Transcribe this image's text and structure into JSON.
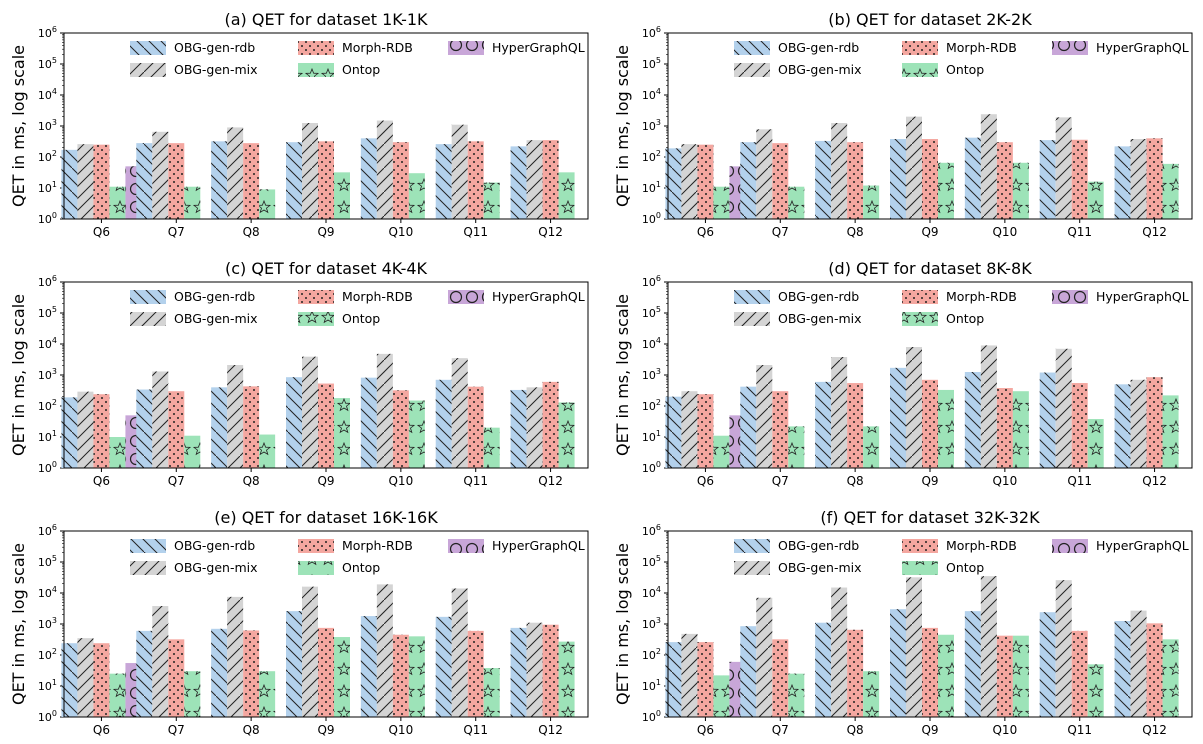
{
  "page": {
    "ylabel": "QET in ms, log scale"
  },
  "series_styles": [
    {
      "name": "OBG-gen-rdb",
      "color": "#b3d1ec",
      "pattern": "backslash"
    },
    {
      "name": "OBG-gen-mix",
      "color": "#d4d4d4",
      "pattern": "slash"
    },
    {
      "name": "Morph-RDB",
      "color": "#f4a7a0",
      "pattern": "dots"
    },
    {
      "name": "Ontop",
      "color": "#9de3b8",
      "pattern": "stars"
    },
    {
      "name": "HyperGraphQL",
      "color": "#c8a6d8",
      "pattern": "circles"
    }
  ],
  "chart_data": [
    {
      "type": "bar",
      "title": "(a) QET for dataset 1K-1K",
      "ylabel": "QET in ms, log scale",
      "yscale": "log",
      "ylim": [
        1,
        1000000
      ],
      "yticks": [
        "10^0",
        "10^1",
        "10^2",
        "10^3",
        "10^4",
        "10^5",
        "10^6"
      ],
      "categories": [
        "Q6",
        "Q7",
        "Q8",
        "Q9",
        "Q10",
        "Q11",
        "Q12"
      ],
      "legend": "top-right",
      "series": [
        {
          "name": "OBG-gen-rdb",
          "values": [
            170,
            280,
            320,
            300,
            400,
            260,
            220
          ]
        },
        {
          "name": "OBG-gen-mix",
          "values": [
            260,
            650,
            900,
            1250,
            1500,
            1100,
            350
          ]
        },
        {
          "name": "Morph-RDB",
          "values": [
            250,
            280,
            280,
            320,
            300,
            320,
            350
          ]
        },
        {
          "name": "Ontop",
          "values": [
            11,
            11,
            9,
            32,
            30,
            15,
            32
          ]
        },
        {
          "name": "HyperGraphQL",
          "values": [
            50,
            null,
            null,
            null,
            null,
            null,
            null
          ]
        }
      ]
    },
    {
      "type": "bar",
      "title": "(b) QET for dataset 2K-2K",
      "ylabel": "QET in ms, log scale",
      "yscale": "log",
      "ylim": [
        1,
        1000000
      ],
      "yticks": [
        "10^0",
        "10^1",
        "10^2",
        "10^3",
        "10^4",
        "10^5",
        "10^6"
      ],
      "categories": [
        "Q6",
        "Q7",
        "Q8",
        "Q9",
        "Q10",
        "Q11",
        "Q12"
      ],
      "legend": "top-right",
      "series": [
        {
          "name": "OBG-gen-rdb",
          "values": [
            190,
            300,
            330,
            380,
            420,
            350,
            220
          ]
        },
        {
          "name": "OBG-gen-mix",
          "values": [
            260,
            780,
            1250,
            2000,
            2400,
            1900,
            380
          ]
        },
        {
          "name": "Morph-RDB",
          "values": [
            250,
            280,
            300,
            380,
            300,
            360,
            400
          ]
        },
        {
          "name": "Ontop",
          "values": [
            11,
            11,
            12,
            65,
            65,
            16,
            60
          ]
        },
        {
          "name": "HyperGraphQL",
          "values": [
            50,
            null,
            null,
            null,
            null,
            null,
            null
          ]
        }
      ]
    },
    {
      "type": "bar",
      "title": "(c) QET for dataset 4K-4K",
      "ylabel": "QET in ms, log scale",
      "yscale": "log",
      "ylim": [
        1,
        1000000
      ],
      "yticks": [
        "10^0",
        "10^1",
        "10^2",
        "10^3",
        "10^4",
        "10^5",
        "10^6"
      ],
      "categories": [
        "Q6",
        "Q7",
        "Q8",
        "Q9",
        "Q10",
        "Q11",
        "Q12"
      ],
      "legend": "top-right",
      "series": [
        {
          "name": "OBG-gen-rdb",
          "values": [
            190,
            340,
            400,
            850,
            820,
            700,
            330
          ]
        },
        {
          "name": "OBG-gen-mix",
          "values": [
            290,
            1300,
            2100,
            3900,
            4800,
            3500,
            400
          ]
        },
        {
          "name": "Morph-RDB",
          "values": [
            240,
            300,
            430,
            530,
            320,
            420,
            600
          ]
        },
        {
          "name": "Ontop",
          "values": [
            10,
            11,
            12,
            180,
            150,
            20,
            130
          ]
        },
        {
          "name": "HyperGraphQL",
          "values": [
            50,
            null,
            null,
            null,
            null,
            null,
            null
          ]
        }
      ]
    },
    {
      "type": "bar",
      "title": "(d) QET for dataset 8K-8K",
      "ylabel": "QET in ms, log scale",
      "yscale": "log",
      "ylim": [
        1,
        1000000
      ],
      "yticks": [
        "10^0",
        "10^1",
        "10^2",
        "10^3",
        "10^4",
        "10^5",
        "10^6"
      ],
      "categories": [
        "Q6",
        "Q7",
        "Q8",
        "Q9",
        "Q10",
        "Q11",
        "Q12"
      ],
      "legend": "top-right",
      "series": [
        {
          "name": "OBG-gen-rdb",
          "values": [
            200,
            420,
            600,
            1700,
            1250,
            1200,
            500
          ]
        },
        {
          "name": "OBG-gen-mix",
          "values": [
            300,
            2100,
            3800,
            8000,
            9000,
            7000,
            700
          ]
        },
        {
          "name": "Morph-RDB",
          "values": [
            240,
            300,
            550,
            700,
            380,
            550,
            850
          ]
        },
        {
          "name": "Ontop",
          "values": [
            11,
            22,
            22,
            330,
            300,
            38,
            220
          ]
        },
        {
          "name": "HyperGraphQL",
          "values": [
            50,
            null,
            null,
            null,
            null,
            null,
            null
          ]
        }
      ]
    },
    {
      "type": "bar",
      "title": "(e) QET for dataset 16K-16K",
      "ylabel": "QET in ms, log scale",
      "yscale": "log",
      "ylim": [
        1,
        1000000
      ],
      "yticks": [
        "10^0",
        "10^1",
        "10^2",
        "10^3",
        "10^4",
        "10^5",
        "10^6"
      ],
      "categories": [
        "Q6",
        "Q7",
        "Q8",
        "Q9",
        "Q10",
        "Q11",
        "Q12"
      ],
      "legend": "top-right",
      "series": [
        {
          "name": "OBG-gen-rdb",
          "values": [
            240,
            600,
            700,
            2600,
            1800,
            1700,
            750
          ]
        },
        {
          "name": "OBG-gen-mix",
          "values": [
            350,
            3800,
            7500,
            16000,
            19000,
            14000,
            1100
          ]
        },
        {
          "name": "Morph-RDB",
          "values": [
            240,
            320,
            620,
            750,
            450,
            600,
            950
          ]
        },
        {
          "name": "Ontop",
          "values": [
            25,
            30,
            30,
            380,
            400,
            38,
            270
          ]
        },
        {
          "name": "HyperGraphQL",
          "values": [
            55,
            null,
            null,
            null,
            null,
            null,
            null
          ]
        }
      ]
    },
    {
      "type": "bar",
      "title": "(f) QET for dataset 32K-32K",
      "ylabel": "QET in ms, log scale",
      "yscale": "log",
      "ylim": [
        1,
        1000000
      ],
      "yticks": [
        "10^0",
        "10^1",
        "10^2",
        "10^3",
        "10^4",
        "10^5",
        "10^6"
      ],
      "categories": [
        "Q6",
        "Q7",
        "Q8",
        "Q9",
        "Q10",
        "Q11",
        "Q12"
      ],
      "legend": "top-right",
      "series": [
        {
          "name": "OBG-gen-rdb",
          "values": [
            260,
            850,
            1100,
            3000,
            2600,
            2400,
            1250
          ]
        },
        {
          "name": "OBG-gen-mix",
          "values": [
            480,
            7000,
            15000,
            32000,
            35000,
            26000,
            2700
          ]
        },
        {
          "name": "Morph-RDB",
          "values": [
            260,
            320,
            650,
            750,
            420,
            600,
            1050
          ]
        },
        {
          "name": "Ontop",
          "values": [
            22,
            25,
            30,
            450,
            420,
            50,
            320
          ]
        },
        {
          "name": "HyperGraphQL",
          "values": [
            60,
            null,
            null,
            null,
            null,
            null,
            null
          ]
        }
      ]
    }
  ]
}
